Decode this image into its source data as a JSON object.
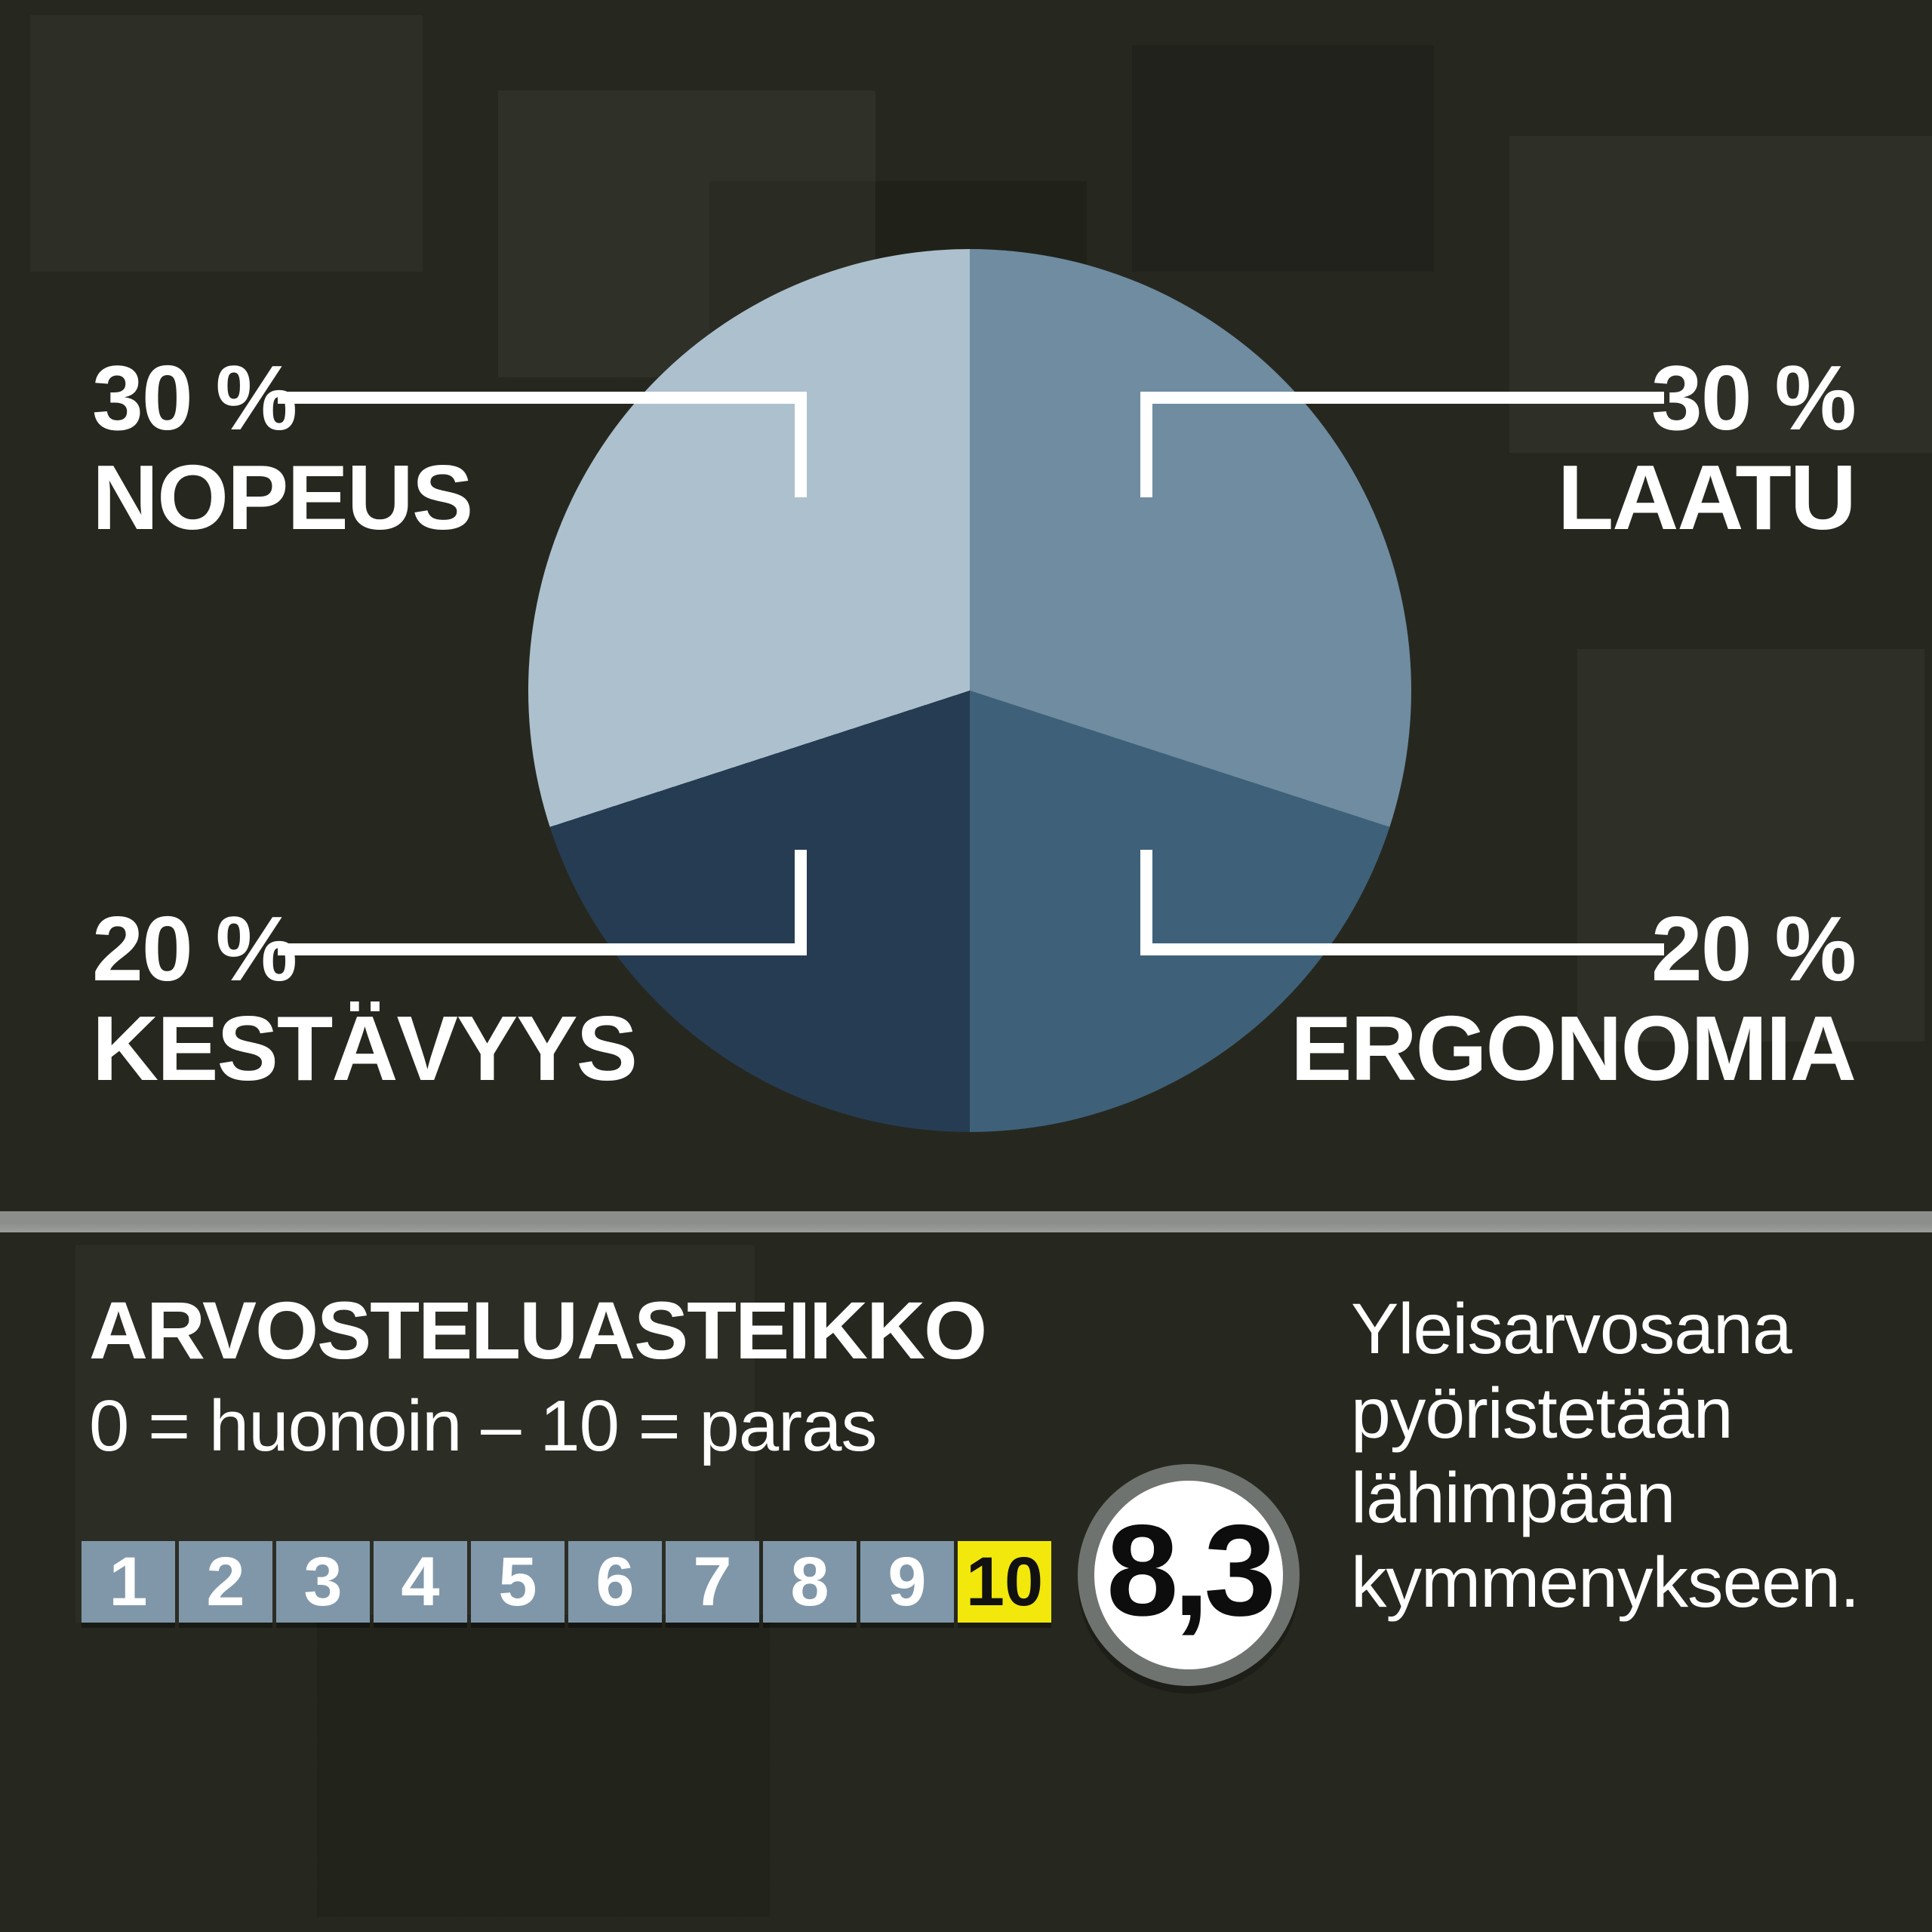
{
  "background": {
    "base_color": "#26281f"
  },
  "divider": {
    "color": "#8b8e8a",
    "color_light": "#9a9d99"
  },
  "chart_data": {
    "type": "pie",
    "title": "",
    "unit": "%",
    "legend_position": "outside-callouts",
    "slices": [
      {
        "label": "NOPEUS",
        "pct_label": "30 %",
        "value": 30,
        "color": "#adc0ce",
        "position": "top-left"
      },
      {
        "label": "LAATU",
        "pct_label": "30 %",
        "value": 30,
        "color": "#6f8ca1",
        "position": "top-right"
      },
      {
        "label": "KESTÄVYYS",
        "pct_label": "20 %",
        "value": 20,
        "color": "#263c53",
        "position": "bottom-left"
      },
      {
        "label": "ERGONOMIA",
        "pct_label": "20 %",
        "value": 20,
        "color": "#3e6179",
        "position": "bottom-right"
      }
    ],
    "clockwise_from_top": [
      "LAATU",
      "ERGONOMIA",
      "KESTÄVYYS",
      "NOPEUS"
    ],
    "callout_line_color": "#ffffff"
  },
  "rating": {
    "heading": "ARVOSTELUASTEIKKO",
    "scale_note": "0 = huonoin – 10 = paras",
    "scale_numbers": [
      1,
      2,
      3,
      4,
      5,
      6,
      7,
      8,
      9,
      10
    ],
    "highlighted_number": 10,
    "score": "8,3",
    "rounding_note": "Yleisarvosana pyöristetään lähimpään kymmenykseen.",
    "box_color": "#8097a9",
    "number_color": "#ffffff",
    "highlight_color": "#f2e80b",
    "highlight_number_color": "#111111",
    "badge_ring_color": "#6f736f"
  }
}
